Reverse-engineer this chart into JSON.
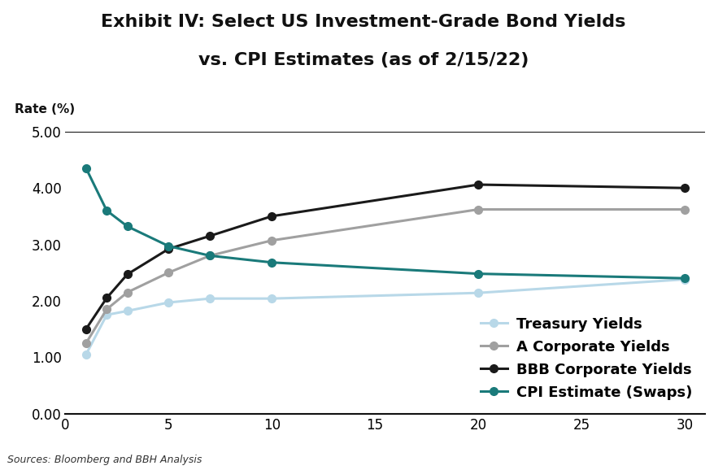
{
  "title_line1": "Exhibit IV: Select US Investment-Grade Bond Yields",
  "title_line2": "vs. CPI Estimates (as of 2/15/22)",
  "rate_label": "Rate (%)",
  "source": "Sources: Bloomberg and BBH Analysis",
  "x_values": [
    1,
    2,
    3,
    5,
    7,
    10,
    20,
    30
  ],
  "treasury_yields": [
    1.05,
    1.75,
    1.82,
    1.97,
    2.04,
    2.04,
    2.14,
    2.38
  ],
  "a_corporate_yields": [
    1.25,
    1.85,
    2.15,
    2.5,
    2.8,
    3.07,
    3.62,
    3.62
  ],
  "bbb_corporate_yields": [
    1.5,
    2.05,
    2.47,
    2.92,
    3.15,
    3.5,
    4.06,
    4.0
  ],
  "cpi_estimate": [
    4.35,
    3.6,
    3.32,
    2.97,
    2.8,
    2.68,
    2.48,
    2.4
  ],
  "treasury_color": "#b8d8e8",
  "a_corporate_color": "#a0a0a0",
  "bbb_corporate_color": "#1a1a1a",
  "cpi_color": "#1a7a7a",
  "ylim": [
    0.0,
    5.0
  ],
  "yticks": [
    0.0,
    1.0,
    2.0,
    3.0,
    4.0,
    5.0
  ],
  "xticks": [
    0,
    5,
    10,
    15,
    20,
    25,
    30
  ],
  "xlim": [
    0,
    31
  ],
  "marker_size": 7,
  "line_width": 2.2,
  "legend_labels": [
    "Treasury Yields",
    "A Corporate Yields",
    "BBB Corporate Yields",
    "CPI Estimate (Swaps)"
  ],
  "background_color": "#ffffff",
  "title_fontsize": 16,
  "rate_label_fontsize": 11,
  "tick_fontsize": 12,
  "legend_fontsize": 13,
  "source_fontsize": 9,
  "spine_color": "#111111"
}
